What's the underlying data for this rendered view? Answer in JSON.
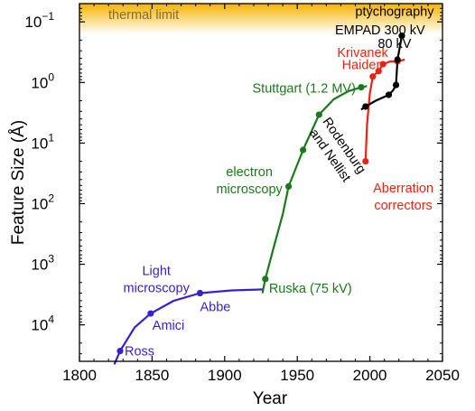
{
  "chart_data": {
    "type": "line",
    "xlabel": "Year",
    "ylabel": "Feature Size (Å)",
    "xlim": [
      1800,
      2050
    ],
    "x_ticks": [
      1800,
      1850,
      1900,
      1950,
      2000,
      2050
    ],
    "y_axis": {
      "scale": "log",
      "inverted": true,
      "lim": [
        0.05,
        40000
      ],
      "ticks": [
        {
          "value": 0.1,
          "base": "10",
          "exp": "−1"
        },
        {
          "value": 1,
          "base": "10",
          "exp": "0"
        },
        {
          "value": 10,
          "base": "10",
          "exp": "1"
        },
        {
          "value": 100,
          "base": "10",
          "exp": "2"
        },
        {
          "value": 1000,
          "base": "10",
          "exp": "3"
        },
        {
          "value": 10000,
          "base": "10",
          "exp": "4"
        }
      ]
    },
    "thermal_limit": {
      "label": "thermal limit",
      "color": "#f5b400",
      "max_value": 0.1
    },
    "series": [
      {
        "key": "light",
        "color": "#3a1fd0",
        "points": [
          {
            "x": 1828,
            "y": 27000,
            "label": "Ross"
          },
          {
            "x": 1849,
            "y": 6500,
            "label": "Amici"
          },
          {
            "x": 1883,
            "y": 3000,
            "label": "Abbe"
          }
        ],
        "curve": [
          [
            1824,
            45000
          ],
          [
            1828,
            27000
          ],
          [
            1838,
            11000
          ],
          [
            1849,
            6500
          ],
          [
            1865,
            4000
          ],
          [
            1883,
            3000
          ],
          [
            1905,
            2700
          ],
          [
            1927,
            2600
          ]
        ]
      },
      {
        "key": "electron",
        "color": "#1a7a1a",
        "points": [
          {
            "x": 1928,
            "y": 1750,
            "label": "Ruska (75 kV)"
          },
          {
            "x": 1944,
            "y": 52
          },
          {
            "x": 1954,
            "y": 13
          },
          {
            "x": 1965,
            "y": 3.4
          },
          {
            "x": 1994,
            "y": 1.2,
            "label": "Stuttgart (1.2 MV)"
          }
        ],
        "curve": [
          [
            1926,
            3000
          ],
          [
            1928,
            1750
          ],
          [
            1934,
            500
          ],
          [
            1940,
            150
          ],
          [
            1944,
            52
          ],
          [
            1954,
            13
          ],
          [
            1965,
            3.4
          ],
          [
            1975,
            1.9
          ],
          [
            1985,
            1.4
          ],
          [
            1994,
            1.2
          ],
          [
            1998,
            1.15
          ]
        ]
      },
      {
        "key": "aberration",
        "color": "#ee2211",
        "points": [
          {
            "x": 1997,
            "y": 20
          },
          {
            "x": 2002,
            "y": 0.8
          },
          {
            "x": 2006,
            "y": 0.65
          },
          {
            "x": 2009,
            "y": 0.5
          },
          {
            "x": 2019,
            "y": 0.45
          }
        ],
        "curve": [
          [
            1996,
            22
          ],
          [
            1997,
            20
          ],
          [
            1998,
            5
          ],
          [
            2000,
            1.5
          ],
          [
            2002,
            0.8
          ],
          [
            2006,
            0.65
          ],
          [
            2009,
            0.5
          ],
          [
            2014,
            0.45
          ],
          [
            2019,
            0.45
          ],
          [
            2024,
            0.42
          ]
        ]
      },
      {
        "key": "ptychography",
        "color": "#000000",
        "points": [
          {
            "x": 1997,
            "y": 2.5
          },
          {
            "x": 2013,
            "y": 1.6
          },
          {
            "x": 2018,
            "y": 1.1
          },
          {
            "x": 2019,
            "y": 0.42
          },
          {
            "x": 2022,
            "y": 0.17
          }
        ],
        "curve": [
          [
            1994,
            2.8
          ],
          [
            1997,
            2.5
          ],
          [
            2004,
            2.0
          ],
          [
            2013,
            1.6
          ],
          [
            2016,
            1.35
          ],
          [
            2018,
            1.1
          ],
          [
            2019,
            0.42
          ],
          [
            2022,
            0.17
          ]
        ]
      }
    ],
    "annotations": [
      {
        "key": "light-microscopy",
        "lines": [
          "Light",
          "microscopy"
        ],
        "color": "#3a1fd0",
        "x": 1853,
        "y": 1500
      },
      {
        "key": "electron-microscopy",
        "lines": [
          "electron",
          "microscopy"
        ],
        "color": "#1a7a1a",
        "x": 1917,
        "y": 35
      },
      {
        "key": "rodenburg-nellist",
        "lines": [
          "Rodenburg",
          "and Nellist"
        ],
        "color": "#000000",
        "x": 1980,
        "y": 12,
        "rotate": 55
      },
      {
        "key": "aberration-correctors",
        "lines": [
          "Aberration",
          "correctors"
        ],
        "color": "#ee2211",
        "x": 2023,
        "y": 65
      },
      {
        "key": "krivanek",
        "lines": [
          "Krivanek"
        ],
        "color": "#ee2211",
        "x": 1995,
        "y": 0.38
      },
      {
        "key": "haider",
        "lines": [
          "Haider"
        ],
        "color": "#ee2211",
        "x": 1994,
        "y": 0.6
      },
      {
        "key": "empad",
        "lines": [
          "EMPAD 300 kV"
        ],
        "color": "#000000",
        "x": 2007,
        "y": 0.16
      },
      {
        "key": "80kv",
        "lines": [
          "80 kV"
        ],
        "color": "#000000",
        "x": 2017,
        "y": 0.27
      },
      {
        "key": "ptychography",
        "lines": [
          "ptychography"
        ],
        "color": "#000000",
        "x": 2017,
        "y": 0.08
      }
    ]
  }
}
